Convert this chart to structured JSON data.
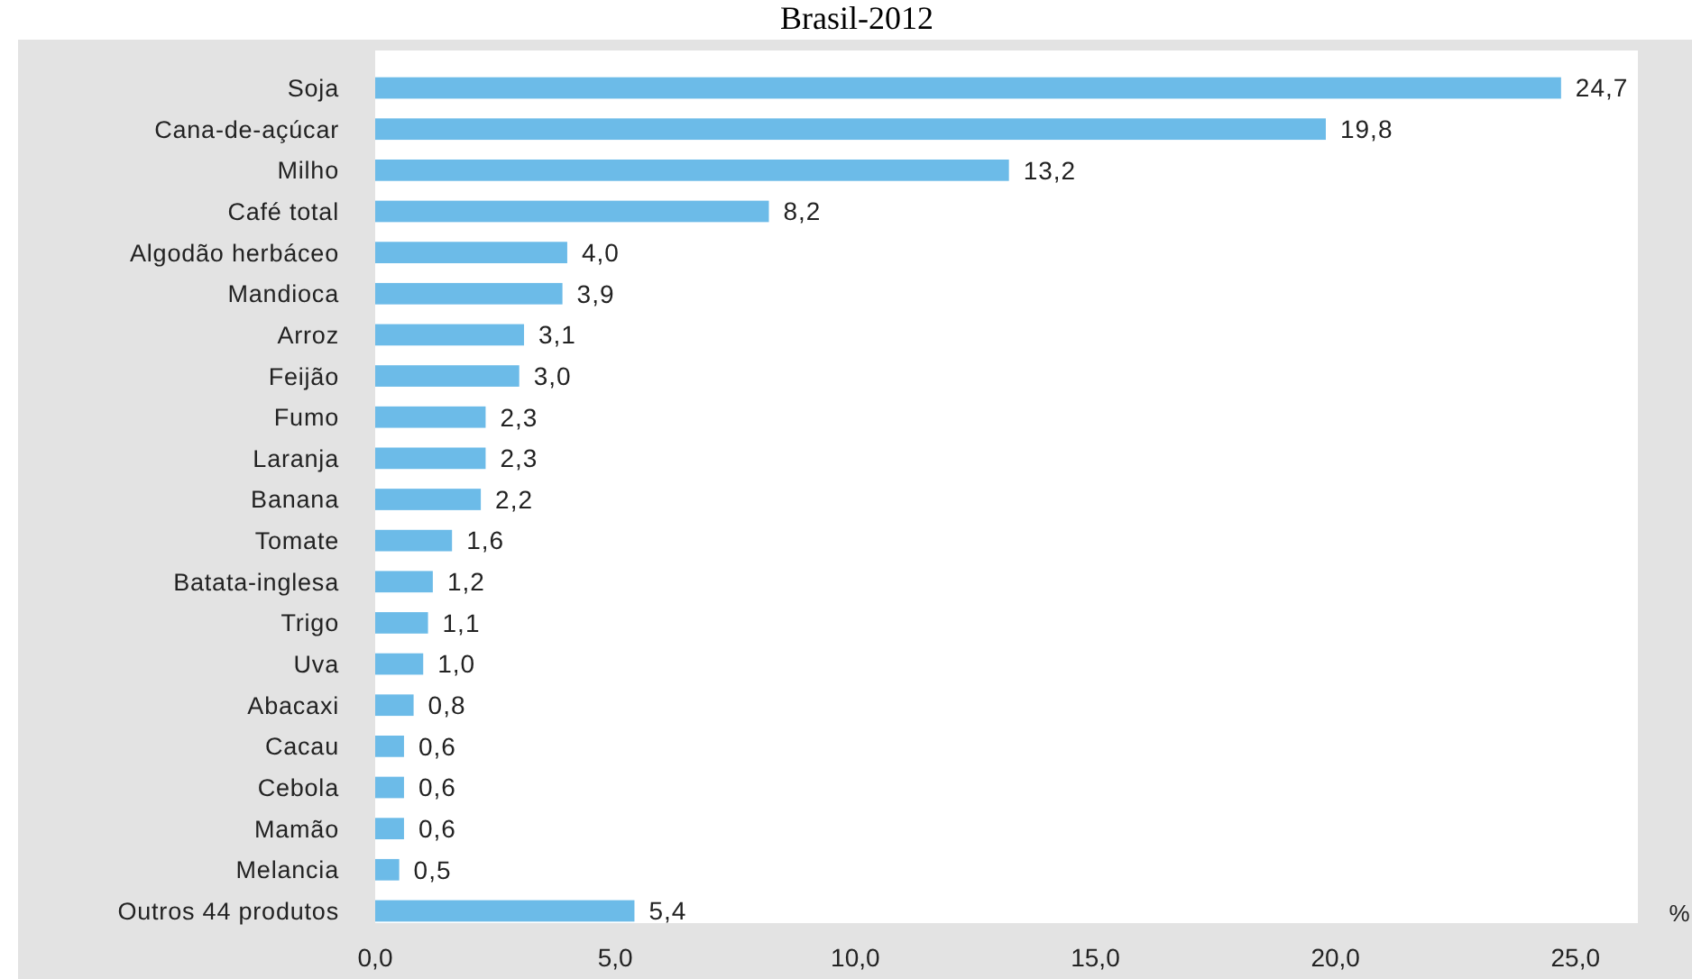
{
  "chart_data": {
    "type": "bar",
    "orientation": "horizontal",
    "title": "Brasil-2012",
    "xlabel": "%",
    "categories": [
      "Soja",
      "Cana-de-açúcar",
      "Milho",
      "Café total",
      "Algodão herbáceo",
      "Mandioca",
      "Arroz",
      "Feijão",
      "Fumo",
      "Laranja",
      "Banana",
      "Tomate",
      "Batata-inglesa",
      "Trigo",
      "Uva",
      "Abacaxi",
      "Cacau",
      "Cebola",
      "Mamão",
      "Melancia",
      "Outros 44 produtos"
    ],
    "values": [
      24.7,
      19.8,
      13.2,
      8.2,
      4.0,
      3.9,
      3.1,
      3.0,
      2.3,
      2.3,
      2.2,
      1.6,
      1.2,
      1.1,
      1.0,
      0.8,
      0.6,
      0.6,
      0.6,
      0.5,
      5.4
    ],
    "value_labels": [
      "24,7",
      "19,8",
      "13,2",
      "8,2",
      "4,0",
      "3,9",
      "3,1",
      "3,0",
      "2,3",
      "2,3",
      "2,2",
      "1,6",
      "1,2",
      "1,1",
      "1,0",
      "0,8",
      "0,6",
      "0,6",
      "0,6",
      "0,5",
      "5,4"
    ],
    "color": "#6cbbe8",
    "xlim": [
      0,
      26.3
    ],
    "xticks": [
      {
        "value": 0,
        "label": "0,0"
      },
      {
        "value": 5,
        "label": "5,0"
      },
      {
        "value": 10,
        "label": "10,0"
      },
      {
        "value": 15,
        "label": "15,0"
      },
      {
        "value": 20,
        "label": "20,0"
      },
      {
        "value": 25,
        "label": "25,0"
      }
    ],
    "grid": false
  }
}
